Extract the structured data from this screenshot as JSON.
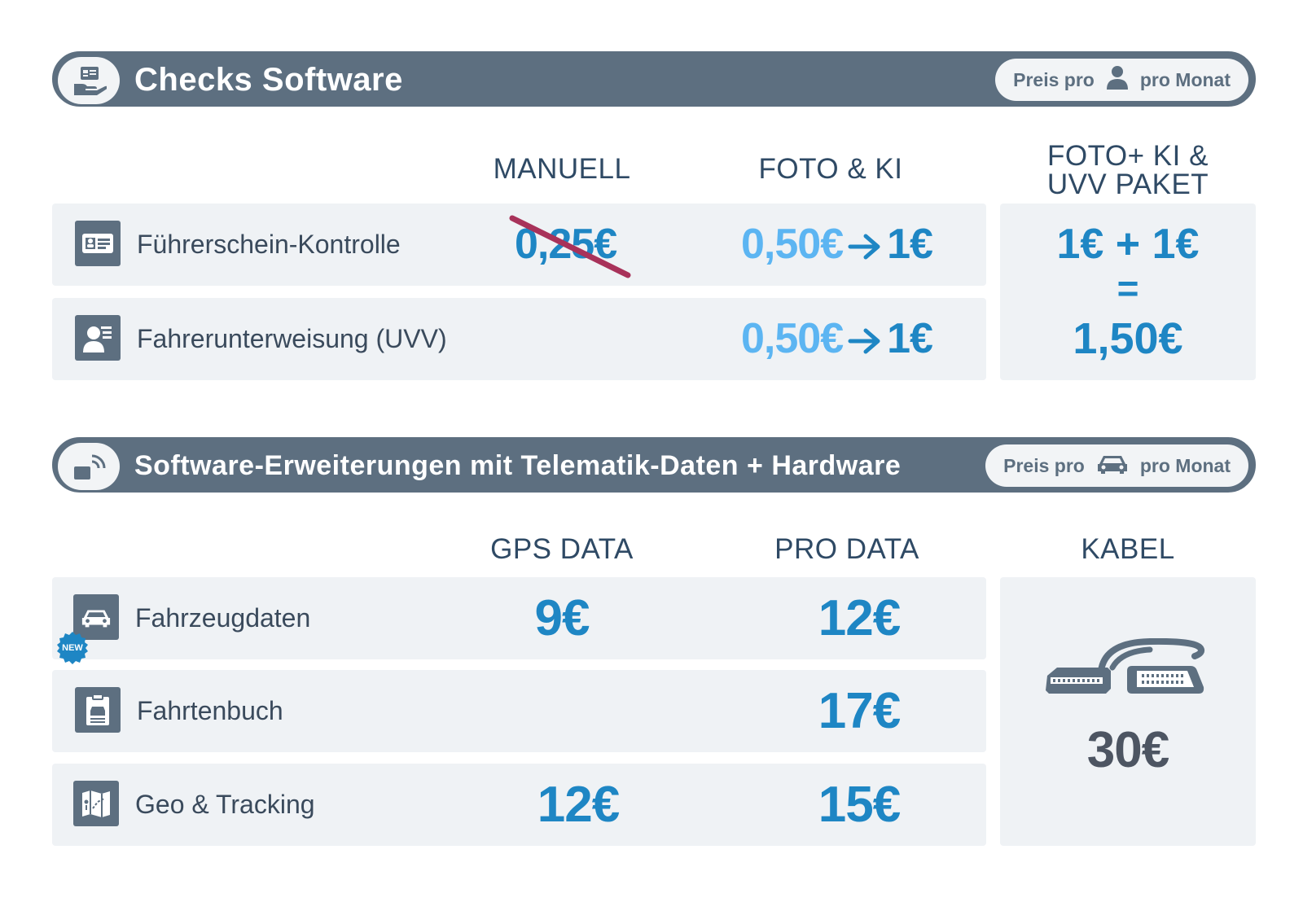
{
  "section1": {
    "title": "Checks Software",
    "icon": "hand-id-card-icon",
    "price_pill": {
      "prefix": "Preis pro",
      "icon": "person-icon",
      "suffix": "pro Monat"
    },
    "columns": [
      "MANUELL",
      "FOTO & KI",
      "FOTO+ KI &",
      "UVV PAKET"
    ],
    "rows": [
      {
        "label": "Führerschein-Kontrolle",
        "icon": "id-card-icon",
        "manual_price": "0,25€",
        "manual_struck": true,
        "foto_old": "0,50€",
        "foto_new": "1€"
      },
      {
        "label": "Fahrerunterweisung (UVV)",
        "icon": "person-list-icon",
        "foto_old": "0,50€",
        "foto_new": "1€"
      }
    ],
    "package": {
      "line1": "1€ + 1€",
      "line2": "=",
      "line3": "1,50€"
    }
  },
  "section2": {
    "title": "Software-Erweiterungen mit Telematik-Daten + Hardware",
    "icon": "signal-device-icon",
    "price_pill": {
      "prefix": "Preis pro",
      "icon": "car-icon",
      "suffix": "pro Monat"
    },
    "columns": [
      "GPS DATA",
      "PRO DATA",
      "KABEL"
    ],
    "rows": [
      {
        "label": "Fahrzeugdaten",
        "icon": "car-front-icon",
        "badge": "NEW",
        "gps": "9€",
        "pro": "12€"
      },
      {
        "label": "Fahrtenbuch",
        "icon": "clipboard-car-icon",
        "gps": "",
        "pro": "17€"
      },
      {
        "label": "Geo & Tracking",
        "icon": "map-icon",
        "gps": "12€",
        "pro": "15€"
      }
    ],
    "cable": {
      "icon": "obd-cable-icon",
      "price": "30€"
    }
  },
  "colors": {
    "banner": "#5d6f80",
    "row_bg": "#eff2f5",
    "price_blue": "#1e86c4",
    "price_light_blue": "#5cb5f2",
    "strike_red": "#a8325a",
    "header_text": "#2f4a65"
  }
}
